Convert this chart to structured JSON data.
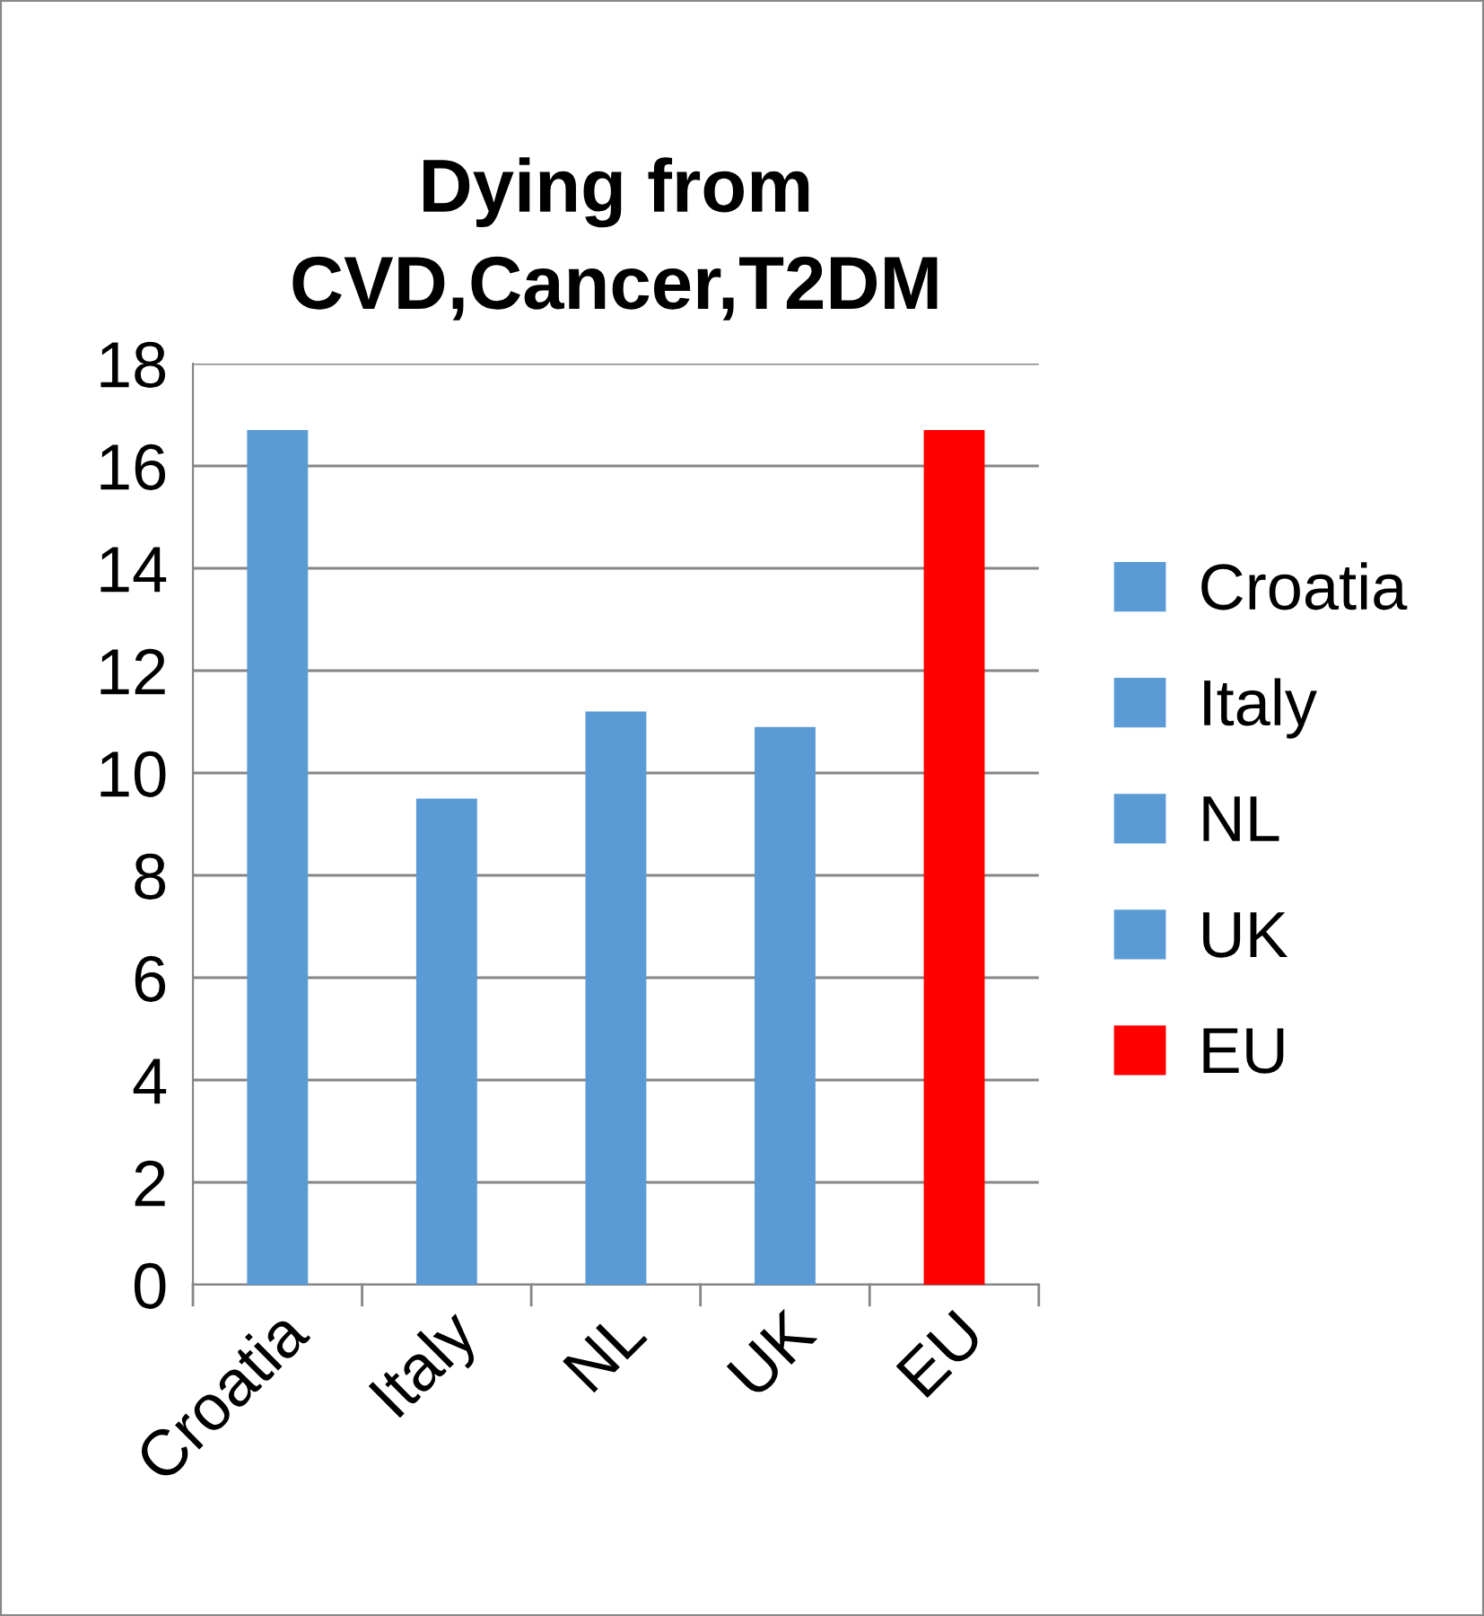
{
  "chart_data": {
    "type": "bar",
    "title": "Dying from\nCVD,Cancer,T2DM",
    "categories": [
      "Croatia",
      "Italy",
      "NL",
      "UK",
      "EU"
    ],
    "series": [
      {
        "name": "Croatia",
        "color": "#5b9bd5",
        "values": [
          16.7,
          null,
          null,
          null,
          null
        ]
      },
      {
        "name": "Italy",
        "color": "#5b9bd5",
        "values": [
          null,
          9.5,
          null,
          null,
          null
        ]
      },
      {
        "name": "NL",
        "color": "#5b9bd5",
        "values": [
          null,
          null,
          11.2,
          null,
          null
        ]
      },
      {
        "name": "UK",
        "color": "#5b9bd5",
        "values": [
          null,
          null,
          null,
          10.9,
          null
        ]
      },
      {
        "name": "EU",
        "color": "#ff0000",
        "values": [
          null,
          null,
          null,
          null,
          16.7
        ]
      }
    ],
    "ylim": [
      0,
      18
    ],
    "yticks": [
      0,
      2,
      4,
      6,
      8,
      10,
      12,
      14,
      16,
      18
    ],
    "grid": "y",
    "legend": "right"
  }
}
